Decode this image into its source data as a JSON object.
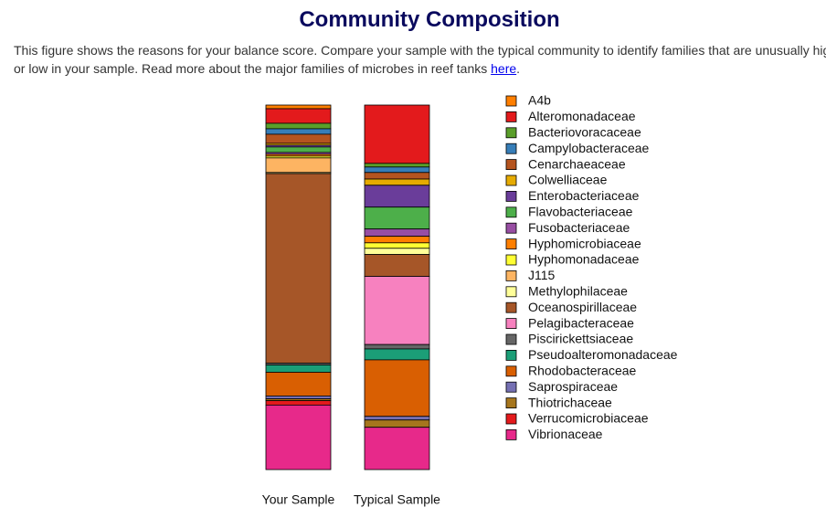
{
  "intro": {
    "line1": "This figure shows the reasons for your balance score. Compare your sample with the typical community to identify families that are unusually hig",
    "line2": "or low in your sample. Read more about the major families of microbes in reef tanks",
    "link": "here",
    "link_suffix": "."
  },
  "chart_data": {
    "type": "stacked_bar",
    "title": "Community Composition",
    "categories": [
      "Your Sample",
      "Typical Sample"
    ],
    "series": [
      {
        "name": "A4b",
        "color": "#ff7f00",
        "values": [
          1,
          0
        ]
      },
      {
        "name": "Alteromonadaceae",
        "color": "#e31a1c",
        "values": [
          4,
          16
        ]
      },
      {
        "name": "Bacteriovoracaceae",
        "color": "#5a9e2a",
        "values": [
          1.5,
          1
        ]
      },
      {
        "name": "Campylobacteraceae",
        "color": "#377eb8",
        "values": [
          1.5,
          1.5
        ]
      },
      {
        "name": "Cenarchaeaceae",
        "color": "#b5541f",
        "values": [
          2.5,
          1.8
        ]
      },
      {
        "name": "Colwelliaceae",
        "color": "#e6ab02",
        "values": [
          0.5,
          1.7
        ]
      },
      {
        "name": "Enterobacteriaceae",
        "color": "#6a3d9a",
        "values": [
          0.5,
          6
        ]
      },
      {
        "name": "Flavobacteriaceae",
        "color": "#4daf4a",
        "values": [
          1.5,
          6
        ]
      },
      {
        "name": "Fusobacteriaceae",
        "color": "#984ea3",
        "values": [
          0.5,
          2
        ]
      },
      {
        "name": "Hyphomicrobiaceae",
        "color": "#ff7f00",
        "values": [
          0.5,
          1.8
        ]
      },
      {
        "name": "Hyphomonadaceae",
        "color": "#ffff33",
        "values": [
          0.5,
          1.5
        ]
      },
      {
        "name": "J115",
        "color": "#fdb462",
        "values": [
          4,
          0
        ]
      },
      {
        "name": "Methylophilaceae",
        "color": "#ffff99",
        "values": [
          0.3,
          1.7
        ]
      },
      {
        "name": "Oceanospirillaceae",
        "color": "#a65628",
        "values": [
          52,
          6
        ]
      },
      {
        "name": "Pelagibacteraceae",
        "color": "#f781bf",
        "values": [
          0,
          18.7
        ]
      },
      {
        "name": "Piscirickettsiaceae",
        "color": "#666666",
        "values": [
          0.5,
          1.2
        ]
      },
      {
        "name": "Pseudoalteromonadaceae",
        "color": "#1b9e77",
        "values": [
          2,
          3
        ]
      },
      {
        "name": "Rhodobacteraceae",
        "color": "#d95f02",
        "values": [
          6.5,
          15.5
        ]
      },
      {
        "name": "Saprospiraceae",
        "color": "#7570b3",
        "values": [
          0.8,
          1
        ]
      },
      {
        "name": "Thiotrichaceae",
        "color": "#a6761d",
        "values": [
          0.5,
          2
        ]
      },
      {
        "name": "Verrucomicrobiaceae",
        "color": "#e41a1c",
        "values": [
          1.2,
          0
        ]
      },
      {
        "name": "Vibrionaceae",
        "color": "#e7298a",
        "values": [
          17.7,
          11.6
        ]
      }
    ]
  }
}
